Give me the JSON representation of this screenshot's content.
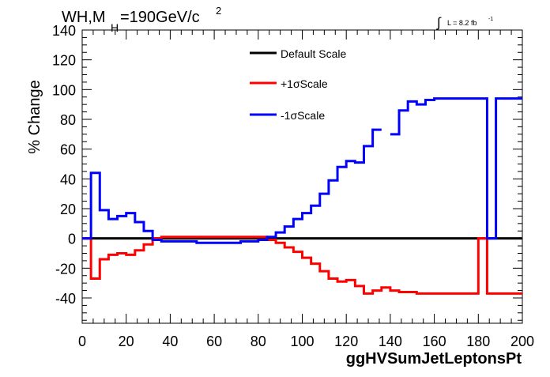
{
  "chart_data": {
    "type": "line",
    "title_main": "WH,M",
    "title_sub": "H",
    "title_rest": "=190GeV/c",
    "title_sup": "2",
    "lumi_integral": "∫",
    "lumi_text": "L = 8.2 fb",
    "lumi_sup": "-1",
    "xlabel": "ggHVSumJetLeptonsPt",
    "ylabel": "% Change",
    "xlim": [
      0,
      200
    ],
    "ylim": [
      -57,
      140
    ],
    "xticks": [
      "0",
      "20",
      "40",
      "60",
      "80",
      "100",
      "120",
      "140",
      "160",
      "180",
      "200"
    ],
    "yticks": [
      "140",
      "120",
      "100",
      "80",
      "60",
      "40",
      "20",
      "0",
      "-20",
      "-40"
    ],
    "bin_edges": [
      0,
      4,
      8,
      12,
      16,
      20,
      24,
      28,
      32,
      36,
      40,
      44,
      48,
      52,
      56,
      60,
      64,
      68,
      72,
      76,
      80,
      84,
      88,
      92,
      96,
      100,
      104,
      108,
      112,
      116,
      120,
      124,
      128,
      132,
      136,
      140,
      144,
      148,
      152,
      156,
      160,
      164,
      168,
      172,
      176,
      180,
      184,
      188,
      192,
      196,
      200
    ],
    "legend_position": "top-center",
    "series": [
      {
        "name": "Default Scale",
        "color": "#000000",
        "values": [
          0,
          0,
          0,
          0,
          0,
          0,
          0,
          0,
          0,
          0,
          0,
          0,
          0,
          0,
          0,
          0,
          0,
          0,
          0,
          0,
          0,
          0,
          0,
          0,
          0,
          0,
          0,
          0,
          0,
          0,
          0,
          0,
          0,
          0,
          0,
          0,
          0,
          0,
          0,
          0,
          0,
          0,
          0,
          0,
          0,
          0,
          0,
          0,
          0,
          0
        ]
      },
      {
        "name": "+1σScale",
        "color": "#ff0000",
        "values": [
          0,
          -27,
          -14,
          -11,
          -10,
          -11,
          -8,
          -4,
          0,
          1,
          1,
          1,
          1,
          1,
          1,
          1,
          1,
          1,
          1,
          1,
          1,
          -1,
          -3,
          -6,
          -9,
          -13,
          -17,
          -22,
          -27,
          -29,
          -28,
          -32,
          -37,
          -35,
          -33,
          -35,
          -36,
          -36,
          -37,
          -37,
          -37,
          -37,
          -37,
          -37,
          -37,
          0,
          -37,
          -37,
          -37,
          -37
        ]
      },
      {
        "name": "-1σScale",
        "color": "#0000ff",
        "values": [
          0,
          44,
          19,
          13,
          15,
          17,
          11,
          5,
          -1,
          -2,
          -2,
          -2,
          -2,
          -3,
          -3,
          -3,
          -3,
          -3,
          -2,
          -2,
          -1,
          1,
          4,
          8,
          13,
          17,
          22,
          30,
          39,
          48,
          52,
          51,
          62,
          73,
          null,
          70,
          86,
          92,
          90,
          93,
          94,
          94,
          94,
          94,
          94,
          94,
          0,
          94,
          94,
          94
        ]
      }
    ]
  }
}
